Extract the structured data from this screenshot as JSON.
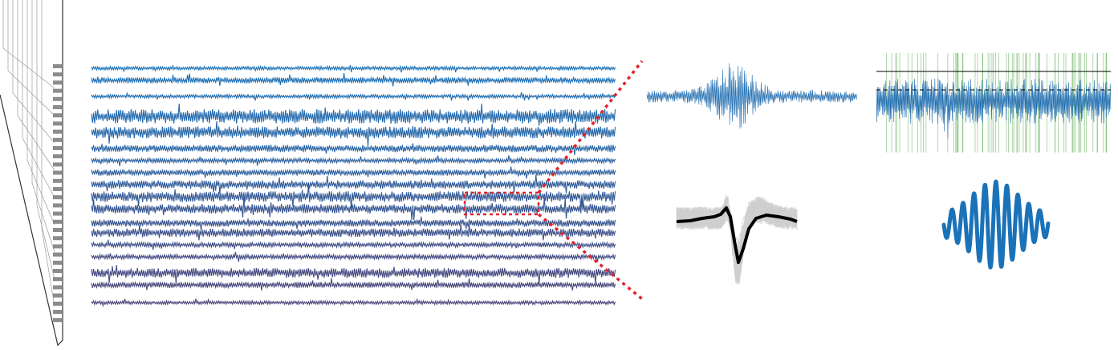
{
  "figure": {
    "background": "#ffffff",
    "channel_count": 18,
    "colors": {
      "channel_top": "#1a72b8",
      "channel_bottom": "#4a4378",
      "probe_outline": "#333333",
      "probe_contacts": "#8c8c8c",
      "probe_wires": "#9a9a9a",
      "zoom_marker": "#e2242b",
      "raw_trace": "#1f6db0",
      "detection_trace": "#1f6db0",
      "spike_events": "#7fc27a",
      "threshold_line": "#000000",
      "waveform_samples": "#cfcfcf",
      "waveform_mean": "#000000",
      "oscillation": "#1a72b8"
    },
    "panels": [
      {
        "name": "probe",
        "icon": "silicon-probe-icon"
      },
      {
        "name": "multichannel-recording",
        "icon": "multichannel-traces"
      },
      {
        "name": "zoomed-raw-trace",
        "icon": "raw-trace"
      },
      {
        "name": "spike-detection",
        "icon": "threshold-detection"
      },
      {
        "name": "spike-waveforms",
        "icon": "waveform-overlay"
      },
      {
        "name": "oscillation",
        "icon": "lfp-oscillation"
      }
    ]
  }
}
